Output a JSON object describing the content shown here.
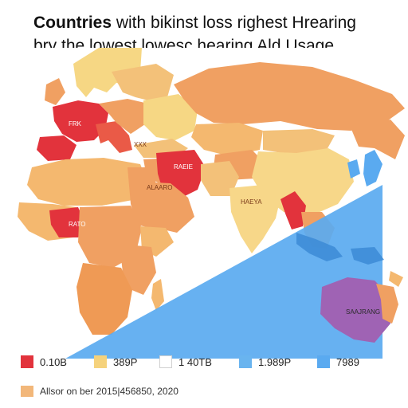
{
  "title": {
    "bold_part": "Countries",
    "rest_line1": " with bikinst loss righest Hrearing",
    "line2": "bry the lowest lowesc hearing Ald Usage"
  },
  "map_labels": {
    "europe": "FRK",
    "mediterranean": "XXX",
    "middle_east": "RAEIE",
    "north_africa": "ALAARO",
    "west_africa": "RATO",
    "south_asia": "HAEYA",
    "australia": "SAAJRANG"
  },
  "legend": [
    {
      "label": "0.10B",
      "color": "#e2333c"
    },
    {
      "label": "389P",
      "color": "#f5d27c"
    },
    {
      "label": "1 40TB",
      "color": "#ffffff"
    },
    {
      "label": "1.989P",
      "color": "#69b4ef"
    },
    {
      "label": "7989",
      "color": "#5aaaf0"
    }
  ],
  "footer": {
    "text": "Allsor on ber 2015|456850, 2020",
    "color": "#f2b77a"
  },
  "colors": {
    "red": "#e2333c",
    "orange": "#ef9a55",
    "light_orange": "#f4b86f",
    "yellow": "#f7d789",
    "blue": "#5aaaf0",
    "purple": "#9f63b4",
    "pale_blue": "#b8d9f6"
  }
}
